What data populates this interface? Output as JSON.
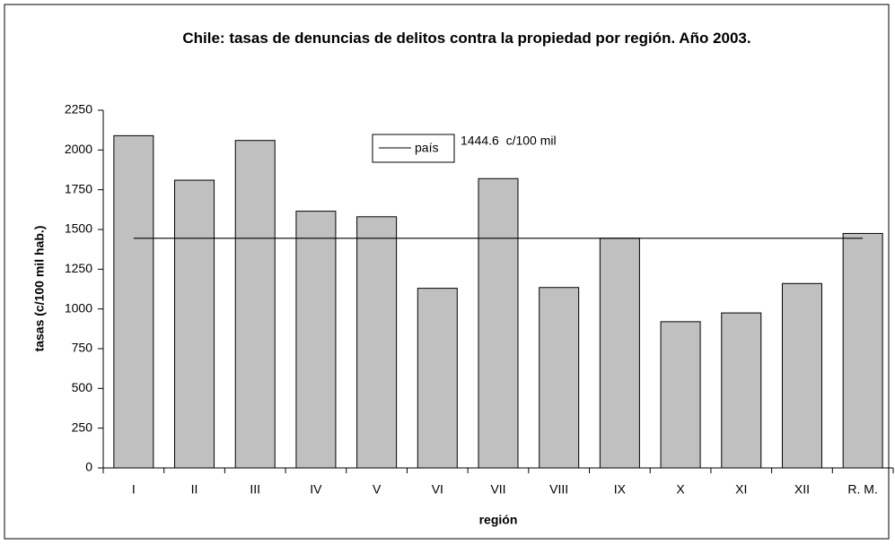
{
  "chart_data": {
    "type": "bar",
    "title": "Chile: tasas de denuncias de delitos contra la propiedad por región. Año 2003.",
    "x_label": "región",
    "y_label": "tasas (c/100 mil hab.)",
    "categories": [
      "I",
      "II",
      "III",
      "IV",
      "V",
      "VI",
      "VII",
      "VIII",
      "IX",
      "X",
      "XI",
      "XII",
      "R. M."
    ],
    "values": [
      2090,
      1810,
      2060,
      1615,
      1580,
      1130,
      1820,
      1135,
      1445,
      920,
      975,
      1160,
      1475
    ],
    "color": "#c0c0c0",
    "reference": {
      "name": "país",
      "value": 1444.6,
      "value_label": "1444.6  c/100 mil",
      "color": "#000000"
    },
    "ylim": [
      0,
      2250
    ],
    "yticks": [
      0,
      250,
      500,
      750,
      1000,
      1250,
      1500,
      1750,
      2000,
      2250
    ]
  }
}
